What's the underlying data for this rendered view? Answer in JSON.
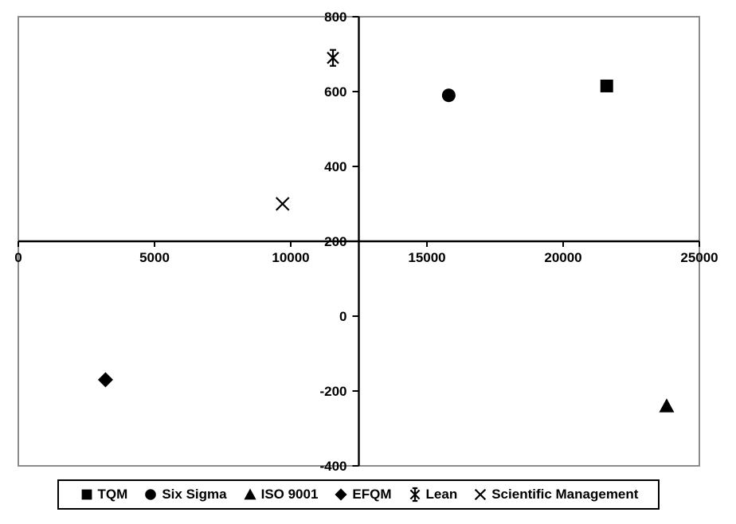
{
  "chart_data": {
    "type": "scatter",
    "title": "",
    "xlabel": "",
    "ylabel": "",
    "grid": false,
    "legend_position": "bottom",
    "x_axis": {
      "min": 0,
      "max": 25000,
      "step": 5000,
      "ticks": [
        0,
        5000,
        10000,
        15000,
        20000,
        25000
      ],
      "crosses_at_y": 200
    },
    "y_axis": {
      "min": -400,
      "max": 800,
      "step": 200,
      "ticks": [
        800,
        600,
        400,
        200,
        0,
        -200,
        -400
      ],
      "crosses_at_x": 12500
    },
    "series": [
      {
        "name": "TQM",
        "marker": "square",
        "points": [
          [
            21600,
            615
          ]
        ]
      },
      {
        "name": "Six Sigma",
        "marker": "circle",
        "points": [
          [
            15800,
            590
          ]
        ]
      },
      {
        "name": "ISO 9001",
        "marker": "triangle",
        "points": [
          [
            23800,
            -240
          ]
        ]
      },
      {
        "name": "EFQM",
        "marker": "diamond",
        "points": [
          [
            3200,
            -170
          ]
        ]
      },
      {
        "name": "Lean",
        "marker": "asterisk",
        "points": [
          [
            11550,
            690
          ]
        ]
      },
      {
        "name": "Scientific Management",
        "marker": "x",
        "points": [
          [
            9700,
            300
          ]
        ]
      }
    ],
    "colors": {
      "marker": "#000000",
      "axis": "#000000",
      "tick_text": "#000000",
      "plot_border": "#7f7f7f",
      "legend_border": "#000000",
      "background": "#ffffff"
    }
  }
}
